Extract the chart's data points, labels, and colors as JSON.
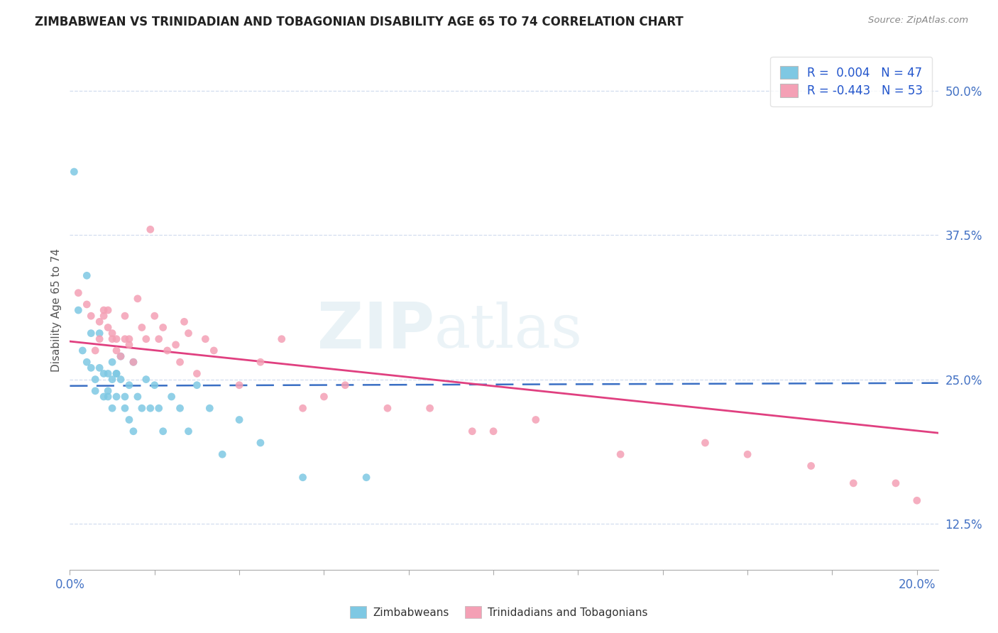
{
  "title": "ZIMBABWEAN VS TRINIDADIAN AND TOBAGONIAN DISABILITY AGE 65 TO 74 CORRELATION CHART",
  "source": "Source: ZipAtlas.com",
  "ylabel": "Disability Age 65 to 74",
  "xlim": [
    0.0,
    0.205
  ],
  "ylim": [
    0.085,
    0.535
  ],
  "y_ticks": [
    0.125,
    0.25,
    0.375,
    0.5
  ],
  "y_tick_labels": [
    "12.5%",
    "25.0%",
    "37.5%",
    "50.0%"
  ],
  "x_ticks": [
    0.0,
    0.02,
    0.04,
    0.06,
    0.08,
    0.1,
    0.12,
    0.14,
    0.16,
    0.18,
    0.2
  ],
  "blue_R": 0.004,
  "blue_N": 47,
  "pink_R": -0.443,
  "pink_N": 53,
  "blue_color": "#7ec8e3",
  "pink_color": "#f4a0b5",
  "blue_line_color": "#3a6fc4",
  "pink_line_color": "#e04080",
  "legend_blue_label": "Zimbabweans",
  "legend_pink_label": "Trinidadians and Tobagonians",
  "blue_x": [
    0.001,
    0.002,
    0.003,
    0.004,
    0.004,
    0.005,
    0.005,
    0.006,
    0.006,
    0.007,
    0.007,
    0.008,
    0.008,
    0.009,
    0.009,
    0.009,
    0.01,
    0.01,
    0.01,
    0.011,
    0.011,
    0.011,
    0.012,
    0.012,
    0.013,
    0.013,
    0.014,
    0.014,
    0.015,
    0.015,
    0.016,
    0.017,
    0.018,
    0.019,
    0.02,
    0.021,
    0.022,
    0.024,
    0.026,
    0.028,
    0.03,
    0.033,
    0.036,
    0.04,
    0.045,
    0.055,
    0.07
  ],
  "blue_y": [
    0.43,
    0.31,
    0.275,
    0.34,
    0.265,
    0.29,
    0.26,
    0.25,
    0.24,
    0.26,
    0.29,
    0.255,
    0.235,
    0.255,
    0.235,
    0.24,
    0.265,
    0.225,
    0.25,
    0.235,
    0.255,
    0.255,
    0.25,
    0.27,
    0.225,
    0.235,
    0.215,
    0.245,
    0.265,
    0.205,
    0.235,
    0.225,
    0.25,
    0.225,
    0.245,
    0.225,
    0.205,
    0.235,
    0.225,
    0.205,
    0.245,
    0.225,
    0.185,
    0.215,
    0.195,
    0.165,
    0.165
  ],
  "pink_x": [
    0.002,
    0.004,
    0.005,
    0.006,
    0.007,
    0.007,
    0.008,
    0.008,
    0.009,
    0.009,
    0.01,
    0.01,
    0.011,
    0.011,
    0.012,
    0.013,
    0.013,
    0.014,
    0.014,
    0.015,
    0.016,
    0.017,
    0.018,
    0.019,
    0.02,
    0.021,
    0.022,
    0.023,
    0.025,
    0.026,
    0.027,
    0.028,
    0.03,
    0.032,
    0.034,
    0.04,
    0.045,
    0.05,
    0.055,
    0.06,
    0.065,
    0.075,
    0.085,
    0.095,
    0.1,
    0.11,
    0.13,
    0.15,
    0.16,
    0.175,
    0.185,
    0.195,
    0.2
  ],
  "pink_y": [
    0.325,
    0.315,
    0.305,
    0.275,
    0.285,
    0.3,
    0.305,
    0.31,
    0.295,
    0.31,
    0.285,
    0.29,
    0.275,
    0.285,
    0.27,
    0.305,
    0.285,
    0.285,
    0.28,
    0.265,
    0.32,
    0.295,
    0.285,
    0.38,
    0.305,
    0.285,
    0.295,
    0.275,
    0.28,
    0.265,
    0.3,
    0.29,
    0.255,
    0.285,
    0.275,
    0.245,
    0.265,
    0.285,
    0.225,
    0.235,
    0.245,
    0.225,
    0.225,
    0.205,
    0.205,
    0.215,
    0.185,
    0.195,
    0.185,
    0.175,
    0.16,
    0.16,
    0.145
  ]
}
